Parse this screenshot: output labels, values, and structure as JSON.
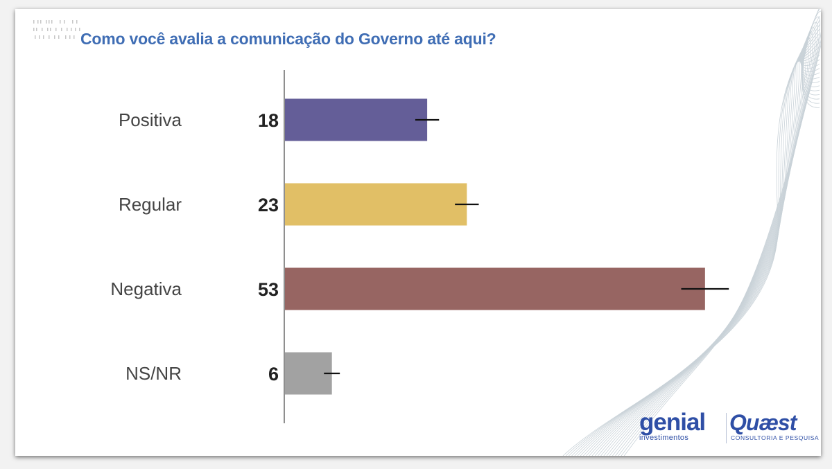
{
  "title": "Como você avalia a comunicação do Governo até aqui?",
  "chart_data": {
    "type": "bar",
    "orientation": "horizontal",
    "title": "Como você avalia a comunicação do Governo até aqui?",
    "categories": [
      "Positiva",
      "Regular",
      "Negativa",
      "NS/NR"
    ],
    "values": [
      18,
      23,
      53,
      6
    ],
    "value_labels": [
      "18",
      "23",
      "53",
      "6"
    ],
    "error_bars": [
      {
        "low": 16.5,
        "high": 19.5
      },
      {
        "low": 21.5,
        "high": 24.5
      },
      {
        "low": 50,
        "high": 56
      },
      {
        "low": 5,
        "high": 7
      }
    ],
    "colors": [
      "#645e98",
      "#e1bf66",
      "#976562",
      "#a2a2a2"
    ],
    "xlim": [
      0,
      60
    ],
    "grid": false,
    "legend": "none"
  },
  "logos": {
    "genial_word": "genial",
    "genial_sub": "investimentos",
    "quaest_word": "Quæst",
    "quaest_sub": "CONSULTORIA E PESQUISA"
  },
  "colors": {
    "title": "#3f6db4",
    "brand": "#2f4fa6"
  }
}
